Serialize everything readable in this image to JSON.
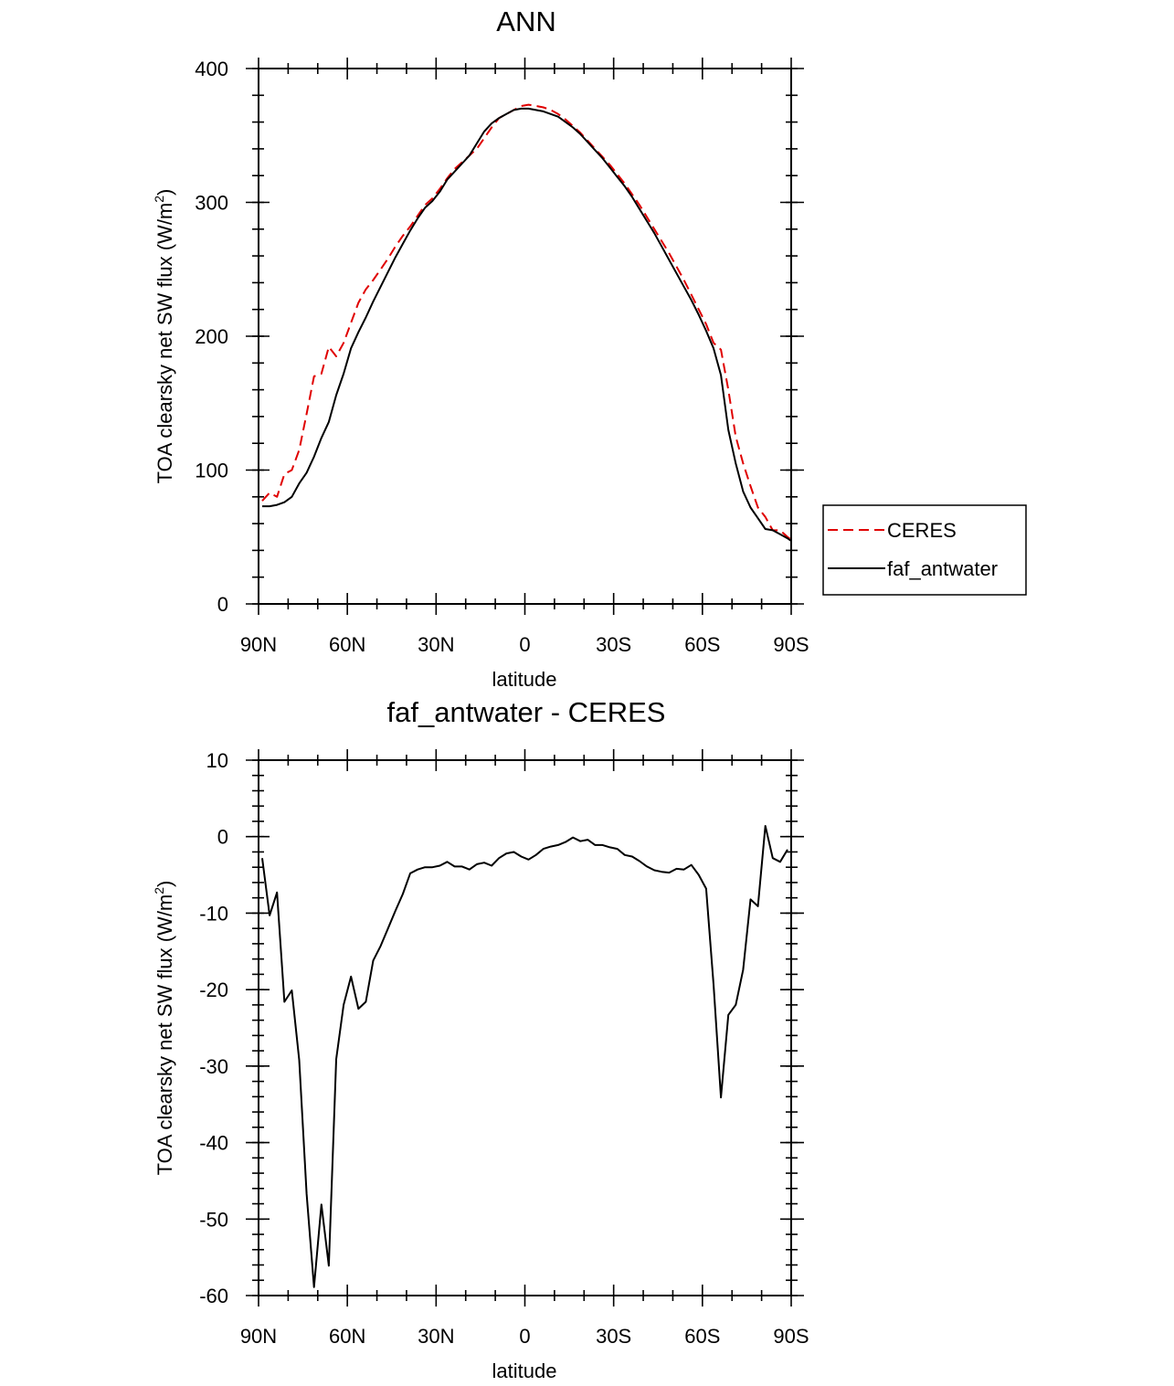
{
  "chart_data": [
    {
      "type": "line",
      "title": "ANN",
      "xlabel": "latitude",
      "ylabel": "TOA clearsky net SW flux (W/m",
      "ylabel_sup": "2",
      "ylabel_close": ")",
      "xlim": [
        90,
        -90
      ],
      "ylim": [
        0,
        400
      ],
      "xticks": [
        {
          "v": 90,
          "label": "90N"
        },
        {
          "v": 60,
          "label": "60N"
        },
        {
          "v": 30,
          "label": "30N"
        },
        {
          "v": 0,
          "label": "0"
        },
        {
          "v": -30,
          "label": "30S"
        },
        {
          "v": -60,
          "label": "60S"
        },
        {
          "v": -90,
          "label": "90S"
        }
      ],
      "yticks": [
        {
          "v": 0,
          "label": "0"
        },
        {
          "v": 100,
          "label": "100"
        },
        {
          "v": 200,
          "label": "200"
        },
        {
          "v": 300,
          "label": "300"
        },
        {
          "v": 400,
          "label": "400"
        }
      ],
      "legend": {
        "placement": "right",
        "entries": [
          "CERES",
          "faf_antwater"
        ]
      },
      "series": [
        {
          "name": "CERES",
          "color": "#e00000",
          "dash": true,
          "points": [
            [
              88.75,
              77
            ],
            [
              86.25,
              83
            ],
            [
              83.75,
              80
            ],
            [
              81.25,
              97
            ],
            [
              78.75,
              100
            ],
            [
              76.25,
              115
            ],
            [
              73.75,
              142
            ],
            [
              71.25,
              170
            ],
            [
              68.75,
              172
            ],
            [
              66.25,
              192
            ],
            [
              63.75,
              185
            ],
            [
              61.25,
              195
            ],
            [
              58.75,
              210
            ],
            [
              56.25,
              225
            ],
            [
              53.75,
              235
            ],
            [
              51.25,
              242
            ],
            [
              48.75,
              250
            ],
            [
              46.25,
              258
            ],
            [
              43.75,
              267
            ],
            [
              41.25,
              275
            ],
            [
              38.75,
              282
            ],
            [
              36.25,
              290
            ],
            [
              33.75,
              298
            ],
            [
              31.25,
              303
            ],
            [
              28.75,
              310
            ],
            [
              26.25,
              318
            ],
            [
              23.75,
              325
            ],
            [
              21.25,
              330
            ],
            [
              18.75,
              335
            ],
            [
              16.25,
              340
            ],
            [
              13.75,
              348
            ],
            [
              11.25,
              356
            ],
            [
              8.75,
              363
            ],
            [
              6.25,
              366
            ],
            [
              3.75,
              369
            ],
            [
              1.25,
              372
            ],
            [
              -1.25,
              373
            ],
            [
              -3.75,
              372
            ],
            [
              -6.25,
              371
            ],
            [
              -8.75,
              369
            ],
            [
              -11.25,
              366
            ],
            [
              -13.75,
              362
            ],
            [
              -16.25,
              357
            ],
            [
              -18.75,
              352
            ],
            [
              -21.25,
              346
            ],
            [
              -23.75,
              340
            ],
            [
              -26.25,
              334
            ],
            [
              -28.75,
              328
            ],
            [
              -31.25,
              321
            ],
            [
              -33.75,
              314
            ],
            [
              -36.25,
              306
            ],
            [
              -38.75,
              298
            ],
            [
              -41.25,
              289
            ],
            [
              -43.75,
              280
            ],
            [
              -46.25,
              271
            ],
            [
              -48.75,
              262
            ],
            [
              -51.25,
              252
            ],
            [
              -53.75,
              242
            ],
            [
              -56.25,
              231
            ],
            [
              -58.75,
              220
            ],
            [
              -61.25,
              209
            ],
            [
              -63.75,
              195
            ],
            [
              -66.25,
              190
            ],
            [
              -68.75,
              160
            ],
            [
              -71.25,
              125
            ],
            [
              -73.75,
              105
            ],
            [
              -76.25,
              88
            ],
            [
              -78.75,
              72
            ],
            [
              -81.25,
              65
            ],
            [
              -83.75,
              55
            ],
            [
              -86.25,
              55
            ],
            [
              -88.75,
              50
            ],
            [
              -90,
              48
            ]
          ]
        },
        {
          "name": "faf_antwater",
          "color": "#000000",
          "dash": false,
          "points": [
            [
              88.75,
              73
            ],
            [
              86.25,
              73
            ],
            [
              83.75,
              74
            ],
            [
              81.25,
              76
            ],
            [
              78.75,
              80
            ],
            [
              76.25,
              90
            ],
            [
              73.75,
              98
            ],
            [
              71.25,
              110
            ],
            [
              68.75,
              124
            ],
            [
              66.25,
              136
            ],
            [
              63.75,
              156
            ],
            [
              61.25,
              172
            ],
            [
              58.75,
              191
            ],
            [
              56.25,
              203
            ],
            [
              53.75,
              214
            ],
            [
              51.25,
              226
            ],
            [
              48.75,
              237
            ],
            [
              46.25,
              248
            ],
            [
              43.75,
              259
            ],
            [
              41.25,
              269
            ],
            [
              38.75,
              279
            ],
            [
              36.25,
              288
            ],
            [
              33.75,
              296
            ],
            [
              31.25,
              301
            ],
            [
              28.75,
              308
            ],
            [
              26.25,
              317
            ],
            [
              23.75,
              323
            ],
            [
              21.25,
              329
            ],
            [
              18.75,
              335
            ],
            [
              16.25,
              344
            ],
            [
              13.75,
              353
            ],
            [
              11.25,
              359
            ],
            [
              8.75,
              363
            ],
            [
              6.25,
              366
            ],
            [
              3.75,
              369
            ],
            [
              1.25,
              370
            ],
            [
              -1.25,
              370
            ],
            [
              -3.75,
              369
            ],
            [
              -6.25,
              368
            ],
            [
              -8.75,
              366
            ],
            [
              -11.25,
              364
            ],
            [
              -13.75,
              360
            ],
            [
              -16.25,
              356
            ],
            [
              -18.75,
              351
            ],
            [
              -21.25,
              345
            ],
            [
              -23.75,
              339
            ],
            [
              -26.25,
              333
            ],
            [
              -28.75,
              326
            ],
            [
              -31.25,
              319
            ],
            [
              -33.75,
              312
            ],
            [
              -36.25,
              304
            ],
            [
              -38.75,
              295
            ],
            [
              -41.25,
              286
            ],
            [
              -43.75,
              277
            ],
            [
              -46.25,
              267
            ],
            [
              -48.75,
              257
            ],
            [
              -51.25,
              247
            ],
            [
              -53.75,
              237
            ],
            [
              -56.25,
              227
            ],
            [
              -58.75,
              216
            ],
            [
              -61.25,
              204
            ],
            [
              -63.75,
              191
            ],
            [
              -66.25,
              171
            ],
            [
              -68.75,
              130
            ],
            [
              -71.25,
              105
            ],
            [
              -73.75,
              84
            ],
            [
              -76.25,
              72
            ],
            [
              -78.75,
              64
            ],
            [
              -81.25,
              56
            ],
            [
              -83.75,
              55
            ],
            [
              -86.25,
              52
            ],
            [
              -88.75,
              49
            ],
            [
              -90,
              47
            ]
          ]
        }
      ]
    },
    {
      "type": "line",
      "title": "faf_antwater - CERES",
      "xlabel": "latitude",
      "ylabel": "TOA clearsky net SW flux (W/m",
      "ylabel_sup": "2",
      "ylabel_close": ")",
      "xlim": [
        90,
        -90
      ],
      "ylim": [
        -60,
        10
      ],
      "xticks": [
        {
          "v": 90,
          "label": "90N"
        },
        {
          "v": 60,
          "label": "60N"
        },
        {
          "v": 30,
          "label": "30N"
        },
        {
          "v": 0,
          "label": "0"
        },
        {
          "v": -30,
          "label": "30S"
        },
        {
          "v": -60,
          "label": "60S"
        },
        {
          "v": -90,
          "label": "90S"
        }
      ],
      "yticks": [
        {
          "v": -60,
          "label": "-60"
        },
        {
          "v": -50,
          "label": "-50"
        },
        {
          "v": -40,
          "label": "-40"
        },
        {
          "v": -30,
          "label": "-30"
        },
        {
          "v": -20,
          "label": "-20"
        },
        {
          "v": -10,
          "label": "-10"
        },
        {
          "v": 0,
          "label": "0"
        },
        {
          "v": 10,
          "label": "10"
        }
      ],
      "series": [
        {
          "color": "#000000",
          "dash": false,
          "points": [
            [
              88.75,
              -2.8
            ],
            [
              86.25,
              -10.3
            ],
            [
              83.75,
              -7.3
            ],
            [
              81.25,
              -21.6
            ],
            [
              78.75,
              -20.1
            ],
            [
              76.25,
              -29.2
            ],
            [
              73.75,
              -46.7
            ],
            [
              71.25,
              -58.9
            ],
            [
              68.75,
              -48.1
            ],
            [
              66.25,
              -56.1
            ],
            [
              63.75,
              -29.1
            ],
            [
              61.25,
              -22.0
            ],
            [
              58.75,
              -18.3
            ],
            [
              56.25,
              -22.5
            ],
            [
              53.75,
              -21.6
            ],
            [
              51.25,
              -16.2
            ],
            [
              48.75,
              -14.3
            ],
            [
              46.25,
              -12.0
            ],
            [
              43.75,
              -9.7
            ],
            [
              41.25,
              -7.5
            ],
            [
              38.75,
              -4.8
            ],
            [
              36.25,
              -4.3
            ],
            [
              33.75,
              -4.0
            ],
            [
              31.25,
              -4.0
            ],
            [
              28.75,
              -3.8
            ],
            [
              26.25,
              -3.3
            ],
            [
              23.75,
              -3.9
            ],
            [
              21.25,
              -3.9
            ],
            [
              18.75,
              -4.3
            ],
            [
              16.25,
              -3.6
            ],
            [
              13.75,
              -3.4
            ],
            [
              11.25,
              -3.8
            ],
            [
              8.75,
              -2.8
            ],
            [
              6.25,
              -2.2
            ],
            [
              3.75,
              -2.0
            ],
            [
              1.25,
              -2.6
            ],
            [
              -1.25,
              -3.0
            ],
            [
              -3.75,
              -2.4
            ],
            [
              -6.25,
              -1.6
            ],
            [
              -8.75,
              -1.3
            ],
            [
              -11.25,
              -1.1
            ],
            [
              -13.75,
              -0.7
            ],
            [
              -16.25,
              -0.1
            ],
            [
              -18.75,
              -0.6
            ],
            [
              -21.25,
              -0.4
            ],
            [
              -23.75,
              -1.1
            ],
            [
              -26.25,
              -1.1
            ],
            [
              -28.75,
              -1.4
            ],
            [
              -31.25,
              -1.6
            ],
            [
              -33.75,
              -2.4
            ],
            [
              -36.25,
              -2.6
            ],
            [
              -38.75,
              -3.2
            ],
            [
              -41.25,
              -3.9
            ],
            [
              -43.75,
              -4.4
            ],
            [
              -46.25,
              -4.6
            ],
            [
              -48.75,
              -4.7
            ],
            [
              -51.25,
              -4.2
            ],
            [
              -53.75,
              -4.3
            ],
            [
              -56.25,
              -3.7
            ],
            [
              -58.75,
              -5.0
            ],
            [
              -61.25,
              -6.8
            ],
            [
              -63.75,
              -19.3
            ],
            [
              -66.25,
              -34.1
            ],
            [
              -68.75,
              -23.3
            ],
            [
              -71.25,
              -22.0
            ],
            [
              -73.75,
              -17.4
            ],
            [
              -76.25,
              -8.2
            ],
            [
              -78.75,
              -9.1
            ],
            [
              -81.25,
              1.4
            ],
            [
              -83.75,
              -2.8
            ],
            [
              -86.25,
              -3.3
            ],
            [
              -88.75,
              -1.7
            ]
          ]
        }
      ]
    }
  ]
}
